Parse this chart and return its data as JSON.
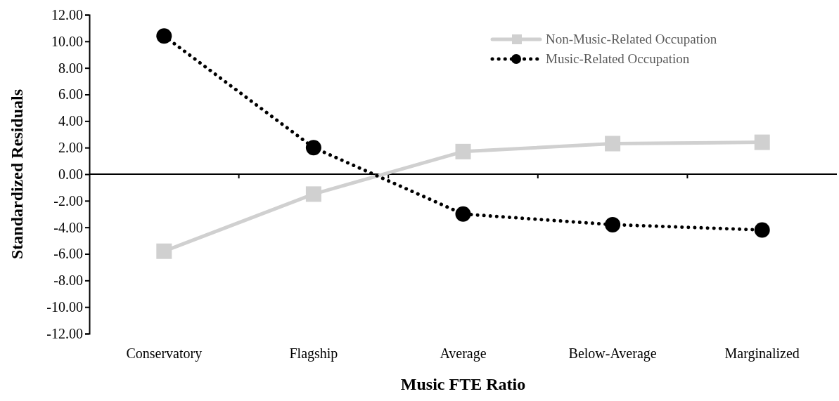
{
  "chart_data": {
    "type": "line",
    "xlabel": "Music FTE Ratio",
    "ylabel": "Standardized Residuals",
    "categories": [
      "Conservatory",
      "Flagship",
      "Average",
      "Below-Average",
      "Marginalized"
    ],
    "series": [
      {
        "name": "Non-Music-Related Occupation",
        "color": "#d0d0d0",
        "values": [
          -5.8,
          -1.5,
          1.7,
          2.3,
          2.4
        ],
        "marker": "square",
        "line_style": "solid"
      },
      {
        "name": "Music-Related Occupation",
        "color": "#000000",
        "values": [
          10.4,
          2.0,
          -3.0,
          -3.8,
          -4.2
        ],
        "marker": "circle",
        "line_style": "dotted"
      }
    ],
    "ylim": [
      -12,
      12
    ],
    "yticks": [
      {
        "value": -12,
        "label": "-12.00"
      },
      {
        "value": -10,
        "label": "-10.00"
      },
      {
        "value": -8,
        "label": "-8.00"
      },
      {
        "value": -6,
        "label": "-6.00"
      },
      {
        "value": -4,
        "label": "-4.00"
      },
      {
        "value": -2,
        "label": "-2.00"
      },
      {
        "value": 0,
        "label": "0.00"
      },
      {
        "value": 2,
        "label": "2.00"
      },
      {
        "value": 4,
        "label": "4.00"
      },
      {
        "value": 6,
        "label": "6.00"
      },
      {
        "value": 8,
        "label": "8.00"
      },
      {
        "value": 10,
        "label": "10.00"
      },
      {
        "value": 12,
        "label": "12.00"
      }
    ],
    "legend": "top right"
  }
}
